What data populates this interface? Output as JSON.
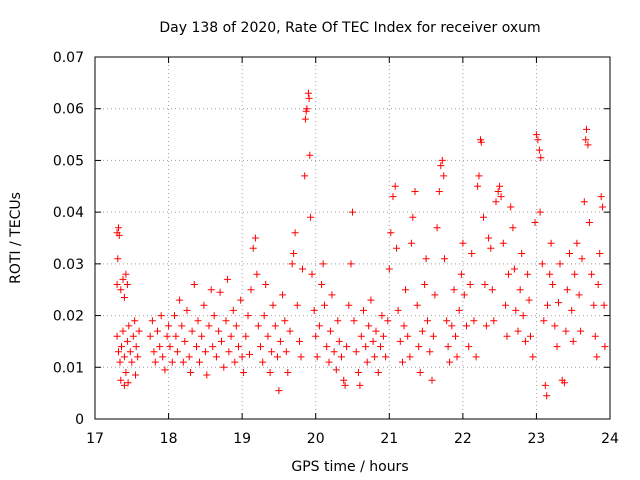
{
  "chart_data": {
    "type": "scatter",
    "title": "Day 138 of 2020, Rate Of TEC Index for receiver oxum",
    "xlabel": "GPS time / hours",
    "ylabel": "ROTI / TECUs",
    "xlim": [
      17,
      24
    ],
    "ylim": [
      0,
      0.07
    ],
    "x_ticks": [
      17,
      18,
      19,
      20,
      21,
      22,
      23,
      24
    ],
    "x_tick_labels": [
      "17",
      "18",
      "19",
      "20",
      "21",
      "22",
      "23",
      "24"
    ],
    "y_ticks": [
      0,
      0.01,
      0.02,
      0.03,
      0.04,
      0.05,
      0.06,
      0.07
    ],
    "y_tick_labels": [
      "0",
      "0.01",
      "0.02",
      "0.03",
      "0.04",
      "0.05",
      "0.06",
      "0.07"
    ],
    "grid": true,
    "marker": "+",
    "color": "#ff0000",
    "series": [
      {
        "name": "ROTI",
        "points": [
          [
            17.3,
            0.036
          ],
          [
            17.32,
            0.037
          ],
          [
            17.33,
            0.0355
          ],
          [
            17.31,
            0.031
          ],
          [
            17.3,
            0.026
          ],
          [
            17.35,
            0.025
          ],
          [
            17.38,
            0.027
          ],
          [
            17.42,
            0.028
          ],
          [
            17.44,
            0.026
          ],
          [
            17.4,
            0.0235
          ],
          [
            17.3,
            0.016
          ],
          [
            17.32,
            0.013
          ],
          [
            17.34,
            0.011
          ],
          [
            17.36,
            0.014
          ],
          [
            17.38,
            0.017
          ],
          [
            17.4,
            0.012
          ],
          [
            17.42,
            0.009
          ],
          [
            17.44,
            0.015
          ],
          [
            17.46,
            0.018
          ],
          [
            17.48,
            0.013
          ],
          [
            17.5,
            0.011
          ],
          [
            17.52,
            0.016
          ],
          [
            17.54,
            0.019
          ],
          [
            17.56,
            0.014
          ],
          [
            17.58,
            0.012
          ],
          [
            17.6,
            0.017
          ],
          [
            17.35,
            0.0075
          ],
          [
            17.4,
            0.0065
          ],
          [
            17.45,
            0.007
          ],
          [
            17.55,
            0.0085
          ],
          [
            17.75,
            0.016
          ],
          [
            17.78,
            0.019
          ],
          [
            17.8,
            0.013
          ],
          [
            17.82,
            0.011
          ],
          [
            17.85,
            0.017
          ],
          [
            17.88,
            0.014
          ],
          [
            17.9,
            0.02
          ],
          [
            17.92,
            0.012
          ],
          [
            17.95,
            0.0095
          ],
          [
            17.98,
            0.016
          ],
          [
            18.0,
            0.018
          ],
          [
            18.02,
            0.014
          ],
          [
            18.05,
            0.011
          ],
          [
            18.08,
            0.02
          ],
          [
            18.1,
            0.016
          ],
          [
            18.12,
            0.013
          ],
          [
            18.15,
            0.023
          ],
          [
            18.18,
            0.018
          ],
          [
            18.2,
            0.011
          ],
          [
            18.22,
            0.015
          ],
          [
            18.25,
            0.021
          ],
          [
            18.28,
            0.012
          ],
          [
            18.3,
            0.009
          ],
          [
            18.32,
            0.017
          ],
          [
            18.35,
            0.026
          ],
          [
            18.38,
            0.014
          ],
          [
            18.4,
            0.019
          ],
          [
            18.42,
            0.011
          ],
          [
            18.45,
            0.016
          ],
          [
            18.48,
            0.022
          ],
          [
            18.5,
            0.013
          ],
          [
            18.52,
            0.0085
          ],
          [
            18.55,
            0.018
          ],
          [
            18.58,
            0.025
          ],
          [
            18.6,
            0.014
          ],
          [
            18.62,
            0.02
          ],
          [
            18.65,
            0.012
          ],
          [
            18.68,
            0.017
          ],
          [
            18.7,
            0.0245
          ],
          [
            18.72,
            0.015
          ],
          [
            18.75,
            0.01
          ],
          [
            18.78,
            0.019
          ],
          [
            18.8,
            0.027
          ],
          [
            18.82,
            0.013
          ],
          [
            18.85,
            0.016
          ],
          [
            18.88,
            0.021
          ],
          [
            18.9,
            0.011
          ],
          [
            18.92,
            0.018
          ],
          [
            18.95,
            0.014
          ],
          [
            18.98,
            0.023
          ],
          [
            19.0,
            0.012
          ],
          [
            19.02,
            0.009
          ],
          [
            19.05,
            0.016
          ],
          [
            19.08,
            0.02
          ],
          [
            19.1,
            0.0125
          ],
          [
            19.12,
            0.025
          ],
          [
            19.15,
            0.033
          ],
          [
            19.18,
            0.035
          ],
          [
            19.2,
            0.028
          ],
          [
            19.22,
            0.018
          ],
          [
            19.25,
            0.014
          ],
          [
            19.28,
            0.011
          ],
          [
            19.3,
            0.02
          ],
          [
            19.32,
            0.026
          ],
          [
            19.35,
            0.016
          ],
          [
            19.38,
            0.009
          ],
          [
            19.4,
            0.013
          ],
          [
            19.42,
            0.022
          ],
          [
            19.45,
            0.018
          ],
          [
            19.48,
            0.012
          ],
          [
            19.5,
            0.0055
          ],
          [
            19.52,
            0.015
          ],
          [
            19.55,
            0.024
          ],
          [
            19.58,
            0.019
          ],
          [
            19.6,
            0.013
          ],
          [
            19.62,
            0.009
          ],
          [
            19.65,
            0.017
          ],
          [
            19.68,
            0.03
          ],
          [
            19.7,
            0.032
          ],
          [
            19.72,
            0.036
          ],
          [
            19.75,
            0.022
          ],
          [
            19.78,
            0.015
          ],
          [
            19.8,
            0.012
          ],
          [
            19.82,
            0.029
          ],
          [
            19.85,
            0.047
          ],
          [
            19.86,
            0.058
          ],
          [
            19.88,
            0.06
          ],
          [
            19.9,
            0.063
          ],
          [
            19.91,
            0.062
          ],
          [
            19.87,
            0.0595
          ],
          [
            19.92,
            0.051
          ],
          [
            19.93,
            0.039
          ],
          [
            19.95,
            0.028
          ],
          [
            19.98,
            0.021
          ],
          [
            20.0,
            0.016
          ],
          [
            20.02,
            0.012
          ],
          [
            20.05,
            0.018
          ],
          [
            20.08,
            0.026
          ],
          [
            20.1,
            0.03
          ],
          [
            20.12,
            0.022
          ],
          [
            20.15,
            0.014
          ],
          [
            20.18,
            0.011
          ],
          [
            20.2,
            0.017
          ],
          [
            20.22,
            0.024
          ],
          [
            20.25,
            0.013
          ],
          [
            20.28,
            0.0095
          ],
          [
            20.3,
            0.019
          ],
          [
            20.32,
            0.015
          ],
          [
            20.35,
            0.012
          ],
          [
            20.38,
            0.0075
          ],
          [
            20.4,
            0.0065
          ],
          [
            20.42,
            0.014
          ],
          [
            20.45,
            0.022
          ],
          [
            20.48,
            0.03
          ],
          [
            20.5,
            0.04
          ],
          [
            20.52,
            0.019
          ],
          [
            20.55,
            0.013
          ],
          [
            20.58,
            0.009
          ],
          [
            20.6,
            0.0065
          ],
          [
            20.62,
            0.016
          ],
          [
            20.65,
            0.021
          ],
          [
            20.68,
            0.014
          ],
          [
            20.7,
            0.011
          ],
          [
            20.72,
            0.018
          ],
          [
            20.75,
            0.023
          ],
          [
            20.78,
            0.015
          ],
          [
            20.8,
            0.012
          ],
          [
            20.82,
            0.017
          ],
          [
            20.85,
            0.009
          ],
          [
            20.88,
            0.014
          ],
          [
            20.9,
            0.02
          ],
          [
            20.92,
            0.016
          ],
          [
            20.95,
            0.012
          ],
          [
            20.98,
            0.019
          ],
          [
            21.0,
            0.029
          ],
          [
            21.02,
            0.036
          ],
          [
            21.05,
            0.043
          ],
          [
            21.08,
            0.045
          ],
          [
            21.1,
            0.033
          ],
          [
            21.12,
            0.021
          ],
          [
            21.15,
            0.015
          ],
          [
            21.18,
            0.011
          ],
          [
            21.2,
            0.018
          ],
          [
            21.22,
            0.025
          ],
          [
            21.25,
            0.016
          ],
          [
            21.28,
            0.012
          ],
          [
            21.3,
            0.034
          ],
          [
            21.32,
            0.039
          ],
          [
            21.35,
            0.044
          ],
          [
            21.38,
            0.022
          ],
          [
            21.4,
            0.014
          ],
          [
            21.42,
            0.009
          ],
          [
            21.45,
            0.017
          ],
          [
            21.48,
            0.026
          ],
          [
            21.5,
            0.031
          ],
          [
            21.52,
            0.019
          ],
          [
            21.55,
            0.013
          ],
          [
            21.58,
            0.0075
          ],
          [
            21.6,
            0.016
          ],
          [
            21.62,
            0.024
          ],
          [
            21.65,
            0.037
          ],
          [
            21.68,
            0.044
          ],
          [
            21.7,
            0.049
          ],
          [
            21.72,
            0.05
          ],
          [
            21.74,
            0.047
          ],
          [
            21.75,
            0.031
          ],
          [
            21.78,
            0.019
          ],
          [
            21.8,
            0.014
          ],
          [
            21.82,
            0.011
          ],
          [
            21.85,
            0.018
          ],
          [
            21.88,
            0.025
          ],
          [
            21.9,
            0.016
          ],
          [
            21.92,
            0.012
          ],
          [
            21.95,
            0.021
          ],
          [
            21.98,
            0.028
          ],
          [
            22.0,
            0.034
          ],
          [
            22.02,
            0.024
          ],
          [
            22.05,
            0.018
          ],
          [
            22.08,
            0.014
          ],
          [
            22.1,
            0.026
          ],
          [
            22.12,
            0.032
          ],
          [
            22.15,
            0.019
          ],
          [
            22.18,
            0.012
          ],
          [
            22.2,
            0.045
          ],
          [
            22.22,
            0.047
          ],
          [
            22.24,
            0.054
          ],
          [
            22.25,
            0.0535
          ],
          [
            22.28,
            0.039
          ],
          [
            22.3,
            0.026
          ],
          [
            22.32,
            0.018
          ],
          [
            22.35,
            0.035
          ],
          [
            22.38,
            0.033
          ],
          [
            22.4,
            0.025
          ],
          [
            22.42,
            0.019
          ],
          [
            22.45,
            0.042
          ],
          [
            22.48,
            0.044
          ],
          [
            22.5,
            0.045
          ],
          [
            22.52,
            0.043
          ],
          [
            22.55,
            0.034
          ],
          [
            22.58,
            0.022
          ],
          [
            22.6,
            0.016
          ],
          [
            22.62,
            0.028
          ],
          [
            22.65,
            0.041
          ],
          [
            22.68,
            0.037
          ],
          [
            22.7,
            0.029
          ],
          [
            22.72,
            0.021
          ],
          [
            22.75,
            0.017
          ],
          [
            22.78,
            0.025
          ],
          [
            22.8,
            0.032
          ],
          [
            22.82,
            0.02
          ],
          [
            22.85,
            0.015
          ],
          [
            22.88,
            0.028
          ],
          [
            22.9,
            0.023
          ],
          [
            22.92,
            0.016
          ],
          [
            22.95,
            0.012
          ],
          [
            22.98,
            0.038
          ],
          [
            23.0,
            0.055
          ],
          [
            23.02,
            0.054
          ],
          [
            23.04,
            0.052
          ],
          [
            23.06,
            0.0505
          ],
          [
            23.05,
            0.04
          ],
          [
            23.08,
            0.03
          ],
          [
            23.1,
            0.019
          ],
          [
            23.12,
            0.0065
          ],
          [
            23.14,
            0.0045
          ],
          [
            23.15,
            0.022
          ],
          [
            23.18,
            0.028
          ],
          [
            23.2,
            0.034
          ],
          [
            23.22,
            0.026
          ],
          [
            23.25,
            0.018
          ],
          [
            23.28,
            0.014
          ],
          [
            23.3,
            0.0225
          ],
          [
            23.32,
            0.03
          ],
          [
            23.35,
            0.0075
          ],
          [
            23.38,
            0.007
          ],
          [
            23.4,
            0.017
          ],
          [
            23.42,
            0.025
          ],
          [
            23.45,
            0.032
          ],
          [
            23.48,
            0.021
          ],
          [
            23.5,
            0.015
          ],
          [
            23.52,
            0.028
          ],
          [
            23.55,
            0.034
          ],
          [
            23.58,
            0.024
          ],
          [
            23.6,
            0.017
          ],
          [
            23.62,
            0.031
          ],
          [
            23.65,
            0.042
          ],
          [
            23.67,
            0.054
          ],
          [
            23.68,
            0.056
          ],
          [
            23.7,
            0.053
          ],
          [
            23.72,
            0.038
          ],
          [
            23.75,
            0.028
          ],
          [
            23.78,
            0.022
          ],
          [
            23.8,
            0.016
          ],
          [
            23.82,
            0.012
          ],
          [
            23.84,
            0.026
          ],
          [
            23.86,
            0.032
          ],
          [
            23.88,
            0.043
          ],
          [
            23.9,
            0.041
          ],
          [
            23.92,
            0.022
          ],
          [
            23.93,
            0.014
          ]
        ]
      }
    ]
  }
}
